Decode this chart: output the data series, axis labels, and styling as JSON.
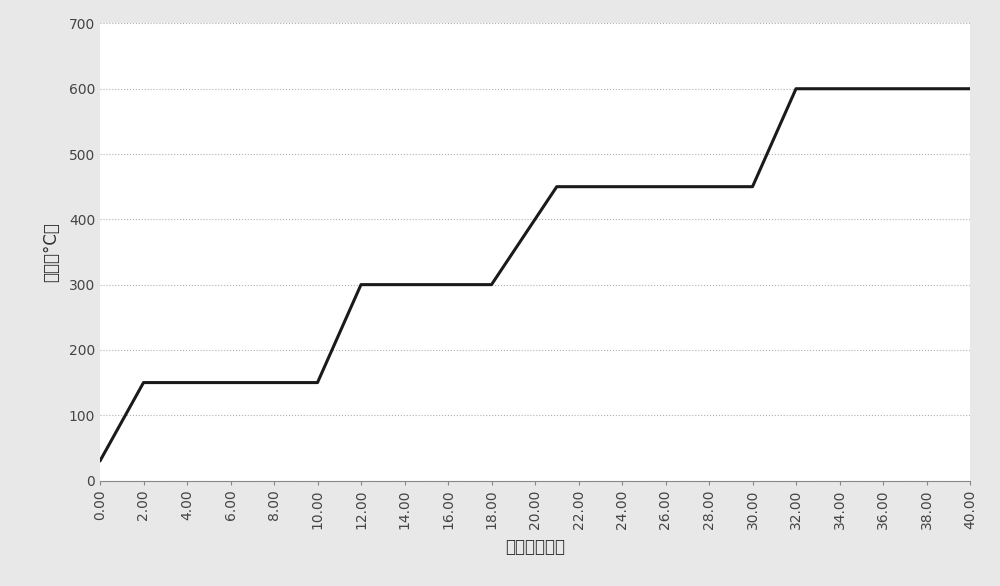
{
  "x": [
    0,
    2,
    2,
    10,
    10,
    12,
    12,
    18,
    18,
    21,
    21,
    30,
    30,
    32,
    32,
    40
  ],
  "y": [
    30,
    150,
    150,
    150,
    150,
    300,
    300,
    300,
    300,
    450,
    450,
    450,
    450,
    600,
    600,
    600
  ],
  "xlim": [
    0,
    40
  ],
  "ylim": [
    0,
    700
  ],
  "xticks": [
    0,
    2,
    4,
    6,
    8,
    10,
    12,
    14,
    16,
    18,
    20,
    22,
    24,
    26,
    28,
    30,
    32,
    34,
    36,
    38,
    40
  ],
  "yticks": [
    0,
    100,
    200,
    300,
    400,
    500,
    600,
    700
  ],
  "xlabel": "时间（分钟）",
  "ylabel": "温度（°C）",
  "line_color": "#1a1a1a",
  "line_width": 2.2,
  "grid_color": "#b0b0b0",
  "plot_bg_color": "#ffffff",
  "fig_bg_color": "#e8e8e8",
  "xlabel_fontsize": 12,
  "ylabel_fontsize": 12,
  "tick_fontsize": 10,
  "tick_color": "#444444"
}
